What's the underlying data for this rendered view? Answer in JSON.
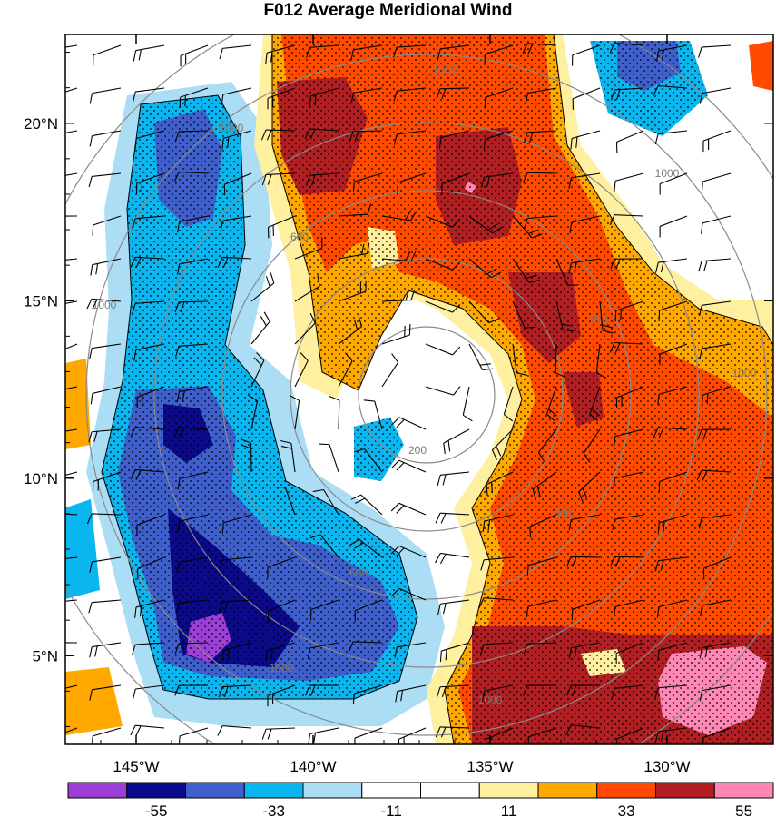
{
  "title": "F012 Average Meridional Wind",
  "chart_data": {
    "type": "heatmap",
    "title": "F012 Average Meridional Wind",
    "x_ticks": [
      "145°W",
      "140°W",
      "135°W",
      "130°W"
    ],
    "y_ticks": [
      "20°N",
      "15°N",
      "10°N",
      "5°N"
    ],
    "xlim_deg_west": [
      147,
      127
    ],
    "ylim_deg_north": [
      2.5,
      22.5
    ],
    "colorbar": {
      "colors": [
        "#9b3fd6",
        "#0a0a8a",
        "#3e5fcc",
        "#0ab6ef",
        "#abdef5",
        "#ffffff",
        "#ffffff",
        "#fff0a0",
        "#ffa800",
        "#ff4a00",
        "#b21f22",
        "#ff87b6"
      ],
      "labels": [
        "-55",
        "-33",
        "-11",
        "11",
        "33",
        "55"
      ],
      "label_positions_after_box": [
        1,
        3,
        5,
        7,
        9,
        11
      ]
    },
    "range_rings": {
      "labels": [
        "200",
        "600",
        "600",
        "600",
        "600",
        "1000",
        "1000",
        "1000",
        "1000",
        "1000",
        "1000",
        "1000"
      ]
    },
    "stippling": "significant regions",
    "overlays": [
      "wind barbs",
      "range rings"
    ]
  }
}
